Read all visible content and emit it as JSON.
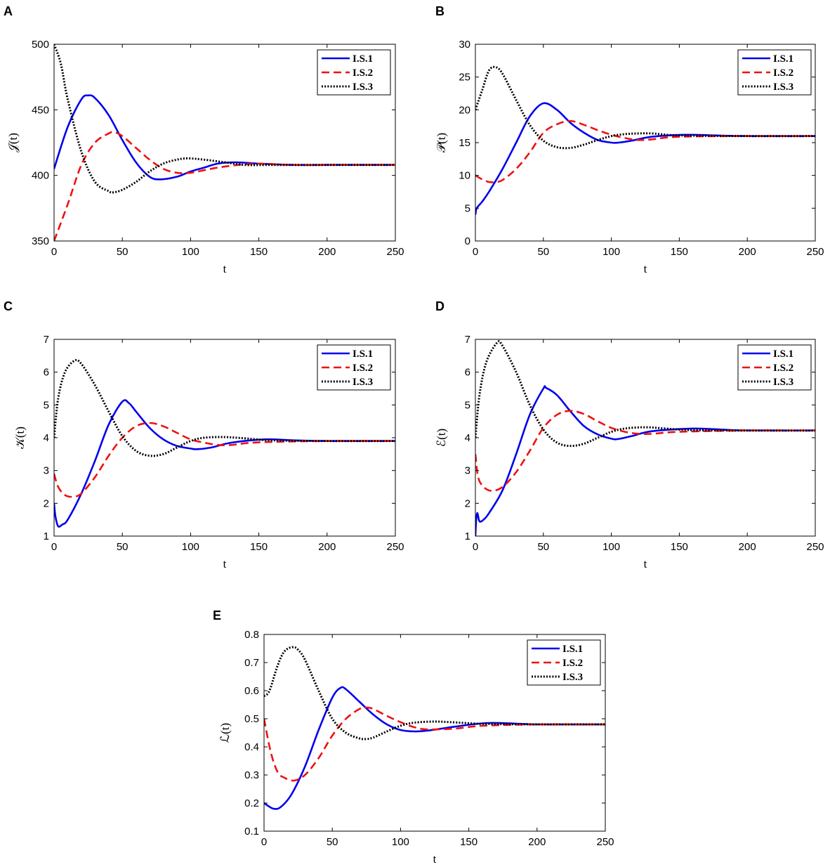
{
  "series_styles": [
    {
      "name": "I.S.1",
      "color": "#0000ee",
      "dash": "solid"
    },
    {
      "name": "I.S.2",
      "color": "#ee1111",
      "dash": "dashed"
    },
    {
      "name": "I.S.3",
      "color": "#000000",
      "dash": "dotted"
    }
  ],
  "chart_data": [
    {
      "panel": "A",
      "type": "line",
      "xlabel": "t",
      "ylabel": "𝒥(t)",
      "xlim": [
        0,
        250
      ],
      "ylim": [
        350,
        500
      ],
      "xticks": [
        0,
        50,
        100,
        150,
        200,
        250
      ],
      "yticks": [
        350,
        400,
        450,
        500
      ],
      "legend": [
        "I.S.1",
        "I.S.2",
        "I.S.3"
      ],
      "legend_position": "top-right",
      "series": [
        {
          "name": "I.S.1",
          "x": [
            0,
            10,
            20,
            25,
            30,
            40,
            50,
            60,
            70,
            78,
            90,
            100,
            110,
            120,
            133,
            150,
            175,
            200,
            250
          ],
          "values": [
            405,
            437,
            458,
            461,
            459,
            446,
            427,
            410,
            399,
            397,
            399,
            403,
            406,
            409,
            410,
            409,
            408,
            408,
            408
          ]
        },
        {
          "name": "I.S.2",
          "x": [
            0,
            10,
            20,
            30,
            40,
            44,
            50,
            60,
            70,
            80,
            90,
            100,
            110,
            120,
            135,
            150,
            175,
            200,
            250
          ],
          "values": [
            350,
            378,
            408,
            425,
            432,
            433,
            430,
            421,
            412,
            405,
            402,
            402,
            404,
            406,
            408,
            409,
            408,
            408,
            408
          ]
        },
        {
          "name": "I.S.3",
          "x": [
            0,
            5,
            10,
            20,
            30,
            40,
            43,
            50,
            60,
            70,
            80,
            90,
            98,
            110,
            125,
            140,
            160,
            200,
            250
          ],
          "values": [
            500,
            485,
            458,
            418,
            395,
            388,
            387,
            389,
            395,
            403,
            409,
            412,
            413,
            412,
            410,
            408,
            408,
            408,
            408
          ]
        }
      ]
    },
    {
      "panel": "B",
      "type": "line",
      "xlabel": "t",
      "ylabel": "𝒫(t)",
      "xlim": [
        0,
        250
      ],
      "ylim": [
        0,
        30
      ],
      "xticks": [
        0,
        50,
        100,
        150,
        200,
        250
      ],
      "yticks": [
        0,
        5,
        10,
        15,
        20,
        25,
        30
      ],
      "legend": [
        "I.S.1",
        "I.S.2",
        "I.S.3"
      ],
      "legend_position": "top-right",
      "series": [
        {
          "name": "I.S.1",
          "x": [
            0,
            1,
            5,
            10,
            20,
            30,
            40,
            50,
            60,
            70,
            80,
            90,
            100,
            105,
            115,
            130,
            155,
            175,
            200,
            250
          ],
          "values": [
            4,
            5,
            6,
            7.5,
            11,
            15,
            19,
            21,
            20,
            18,
            16.5,
            15.4,
            15,
            15,
            15.3,
            15.9,
            16.2,
            16.1,
            16,
            16
          ]
        },
        {
          "name": "I.S.2",
          "x": [
            0,
            5,
            10,
            15,
            20,
            30,
            40,
            50,
            60,
            70,
            80,
            90,
            100,
            110,
            120,
            130,
            150,
            200,
            250
          ],
          "values": [
            10,
            9.4,
            9,
            9,
            9.3,
            11,
            13.5,
            16.5,
            17.8,
            18.3,
            17.7,
            16.9,
            16.2,
            15.7,
            15.4,
            15.5,
            15.9,
            16,
            16
          ]
        },
        {
          "name": "I.S.3",
          "x": [
            0,
            5,
            10,
            15,
            20,
            30,
            40,
            50,
            60,
            70,
            80,
            90,
            100,
            110,
            120,
            130,
            150,
            200,
            250
          ],
          "values": [
            20,
            23,
            26,
            26.5,
            25.5,
            21.5,
            17.7,
            15.3,
            14.3,
            14.2,
            14.7,
            15.4,
            16,
            16.3,
            16.4,
            16.4,
            16.1,
            16,
            16
          ]
        }
      ]
    },
    {
      "panel": "C",
      "type": "line",
      "xlabel": "t",
      "ylabel": "𝒦(t)",
      "xlim": [
        0,
        250
      ],
      "ylim": [
        1,
        7
      ],
      "xticks": [
        0,
        50,
        100,
        150,
        200,
        250
      ],
      "yticks": [
        1,
        2,
        3,
        4,
        5,
        6,
        7
      ],
      "legend": [
        "I.S.1",
        "I.S.2",
        "I.S.3"
      ],
      "legend_position": "top-right",
      "series": [
        {
          "name": "I.S.1",
          "x": [
            0,
            1,
            3,
            6,
            10,
            20,
            30,
            40,
            50,
            55,
            60,
            70,
            80,
            90,
            100,
            105,
            115,
            130,
            155,
            175,
            200,
            250
          ],
          "values": [
            2,
            1.6,
            1.3,
            1.35,
            1.5,
            2.3,
            3.3,
            4.4,
            5.1,
            5.05,
            4.8,
            4.3,
            3.95,
            3.75,
            3.67,
            3.65,
            3.7,
            3.85,
            3.95,
            3.92,
            3.9,
            3.9
          ]
        },
        {
          "name": "I.S.2",
          "x": [
            0,
            3,
            8,
            14,
            20,
            30,
            40,
            50,
            60,
            70,
            80,
            90,
            100,
            110,
            120,
            130,
            150,
            200,
            250
          ],
          "values": [
            2.9,
            2.5,
            2.25,
            2.2,
            2.3,
            2.8,
            3.45,
            4.0,
            4.35,
            4.45,
            4.35,
            4.15,
            3.95,
            3.85,
            3.78,
            3.78,
            3.86,
            3.9,
            3.9
          ]
        },
        {
          "name": "I.S.3",
          "x": [
            0,
            3,
            8,
            15,
            20,
            30,
            40,
            50,
            60,
            70,
            80,
            90,
            100,
            110,
            125,
            140,
            160,
            200,
            250
          ],
          "values": [
            4.0,
            5.2,
            6.0,
            6.35,
            6.25,
            5.6,
            4.8,
            4.05,
            3.6,
            3.45,
            3.5,
            3.7,
            3.9,
            4.0,
            4.02,
            3.98,
            3.92,
            3.9,
            3.9
          ]
        }
      ]
    },
    {
      "panel": "D",
      "type": "line",
      "xlabel": "t",
      "ylabel": "ℰ(t)",
      "xlim": [
        0,
        250
      ],
      "ylim": [
        1,
        7
      ],
      "xticks": [
        0,
        50,
        100,
        150,
        200,
        250
      ],
      "yticks": [
        1,
        2,
        3,
        4,
        5,
        6,
        7
      ],
      "legend": [
        "I.S.1",
        "I.S.2",
        "I.S.3"
      ],
      "legend_position": "top-right",
      "series": [
        {
          "name": "I.S.1",
          "x": [
            0,
            0.6,
            1.5,
            3,
            6,
            10,
            20,
            30,
            40,
            50,
            52,
            60,
            70,
            80,
            90,
            100,
            105,
            115,
            130,
            160,
            180,
            200,
            250
          ],
          "values": [
            1,
            1.5,
            1.7,
            1.45,
            1.5,
            1.7,
            2.4,
            3.5,
            4.7,
            5.5,
            5.52,
            5.3,
            4.8,
            4.35,
            4.1,
            3.97,
            3.96,
            4.05,
            4.2,
            4.28,
            4.25,
            4.22,
            4.22
          ]
        },
        {
          "name": "I.S.2",
          "x": [
            0,
            2,
            6,
            12,
            20,
            30,
            40,
            50,
            60,
            70,
            80,
            90,
            100,
            110,
            120,
            130,
            150,
            200,
            250
          ],
          "values": [
            3.5,
            2.8,
            2.5,
            2.38,
            2.5,
            2.95,
            3.6,
            4.3,
            4.7,
            4.82,
            4.72,
            4.5,
            4.3,
            4.18,
            4.12,
            4.12,
            4.18,
            4.22,
            4.22
          ]
        },
        {
          "name": "I.S.3",
          "x": [
            0,
            3,
            8,
            16,
            20,
            30,
            40,
            50,
            60,
            70,
            80,
            90,
            100,
            110,
            125,
            140,
            160,
            200,
            250
          ],
          "values": [
            4.0,
            5.3,
            6.3,
            6.9,
            6.8,
            6.0,
            5.0,
            4.25,
            3.85,
            3.75,
            3.82,
            4.0,
            4.18,
            4.28,
            4.32,
            4.28,
            4.23,
            4.22,
            4.22
          ]
        }
      ]
    },
    {
      "panel": "E",
      "type": "line",
      "xlabel": "t",
      "ylabel": "ℒ(t)",
      "xlim": [
        0,
        250
      ],
      "ylim": [
        0.1,
        0.8
      ],
      "xticks": [
        0,
        50,
        100,
        150,
        200,
        250
      ],
      "yticks": [
        0.1,
        0.2,
        0.3,
        0.4,
        0.5,
        0.6,
        0.7,
        0.8
      ],
      "legend": [
        "I.S.1",
        "I.S.2",
        "I.S.3"
      ],
      "legend_position": "top-right",
      "series": [
        {
          "name": "I.S.1",
          "x": [
            0,
            3,
            7,
            12,
            20,
            30,
            40,
            50,
            56,
            60,
            70,
            80,
            90,
            100,
            110,
            120,
            140,
            165,
            200,
            250
          ],
          "values": [
            0.2,
            0.19,
            0.18,
            0.185,
            0.23,
            0.33,
            0.46,
            0.575,
            0.61,
            0.605,
            0.56,
            0.515,
            0.48,
            0.46,
            0.455,
            0.458,
            0.472,
            0.485,
            0.48,
            0.48
          ]
        },
        {
          "name": "I.S.2",
          "x": [
            0,
            5,
            10,
            15,
            22,
            30,
            40,
            50,
            60,
            70,
            75,
            80,
            90,
            100,
            110,
            120,
            140,
            160,
            200,
            250
          ],
          "values": [
            0.5,
            0.38,
            0.31,
            0.29,
            0.28,
            0.3,
            0.36,
            0.44,
            0.5,
            0.535,
            0.54,
            0.535,
            0.51,
            0.488,
            0.47,
            0.462,
            0.465,
            0.475,
            0.48,
            0.48
          ]
        },
        {
          "name": "I.S.3",
          "x": [
            0,
            4,
            10,
            15,
            21,
            25,
            30,
            40,
            50,
            60,
            70,
            75,
            80,
            90,
            100,
            110,
            125,
            140,
            160,
            200,
            250
          ],
          "values": [
            0.58,
            0.6,
            0.69,
            0.74,
            0.755,
            0.745,
            0.71,
            0.6,
            0.5,
            0.45,
            0.43,
            0.428,
            0.433,
            0.455,
            0.475,
            0.486,
            0.49,
            0.487,
            0.482,
            0.48,
            0.48
          ]
        }
      ]
    }
  ]
}
